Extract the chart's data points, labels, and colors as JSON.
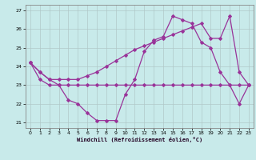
{
  "xlabel": "Windchill (Refroidissement éolien,°C)",
  "bg_color": "#c8eaea",
  "grid_color": "#b0c8c8",
  "line_color": "#993399",
  "xlim": [
    -0.5,
    23.5
  ],
  "ylim": [
    20.7,
    27.3
  ],
  "yticks": [
    21,
    22,
    23,
    24,
    25,
    26,
    27
  ],
  "xticks": [
    0,
    1,
    2,
    3,
    4,
    5,
    6,
    7,
    8,
    9,
    10,
    11,
    12,
    13,
    14,
    15,
    16,
    17,
    18,
    19,
    20,
    21,
    22,
    23
  ],
  "series1_x": [
    0,
    1,
    2,
    3,
    4,
    5,
    6,
    7,
    8,
    9,
    10,
    11,
    12,
    13,
    14,
    15,
    16,
    17,
    18,
    19,
    20,
    21,
    22,
    23
  ],
  "series1_y": [
    24.2,
    23.7,
    23.3,
    23.0,
    22.2,
    22.0,
    21.5,
    21.1,
    21.1,
    21.1,
    22.5,
    23.3,
    24.8,
    25.4,
    25.6,
    26.7,
    26.5,
    26.3,
    25.3,
    25.0,
    23.7,
    23.0,
    22.0,
    23.0
  ],
  "series2_x": [
    0,
    1,
    2,
    3,
    4,
    5,
    6,
    7,
    8,
    9,
    10,
    11,
    12,
    13,
    14,
    15,
    16,
    17,
    18,
    19,
    20,
    21,
    22,
    23
  ],
  "series2_y": [
    24.2,
    23.3,
    23.0,
    23.0,
    23.0,
    23.0,
    23.0,
    23.0,
    23.0,
    23.0,
    23.0,
    23.0,
    23.0,
    23.0,
    23.0,
    23.0,
    23.0,
    23.0,
    23.0,
    23.0,
    23.0,
    23.0,
    23.0,
    23.0
  ],
  "series3_x": [
    0,
    1,
    2,
    3,
    4,
    5,
    6,
    7,
    8,
    9,
    10,
    11,
    12,
    13,
    14,
    15,
    16,
    17,
    18,
    19,
    20,
    21,
    22,
    23
  ],
  "series3_y": [
    24.2,
    23.7,
    23.3,
    23.3,
    23.3,
    23.3,
    23.5,
    23.7,
    24.0,
    24.3,
    24.6,
    24.9,
    25.1,
    25.3,
    25.5,
    25.7,
    25.9,
    26.1,
    26.3,
    25.5,
    25.5,
    26.7,
    23.7,
    23.0
  ]
}
